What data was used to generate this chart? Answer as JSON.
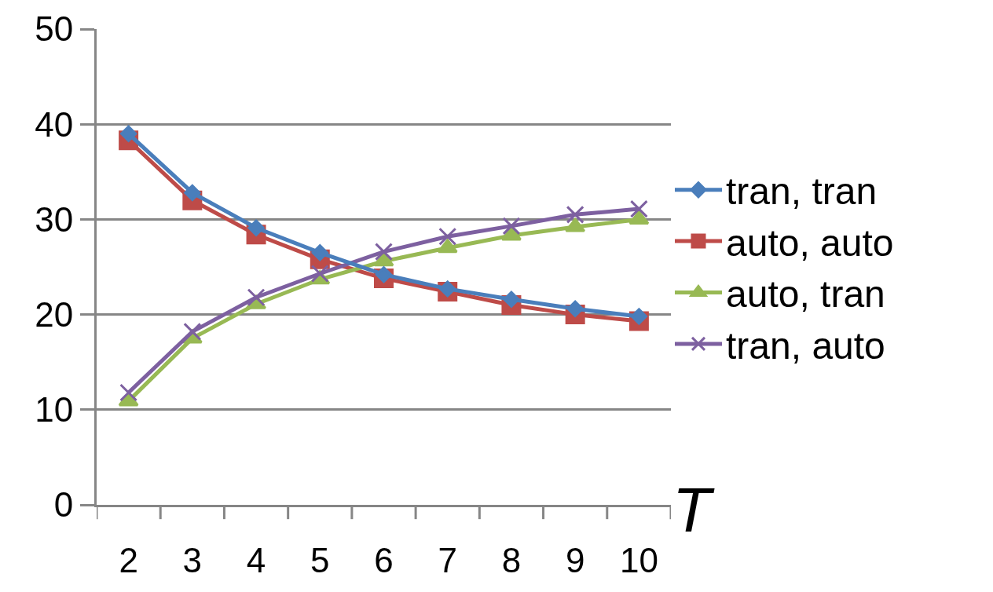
{
  "chart_data": {
    "type": "line",
    "xlabel": "T",
    "categories": [
      "2",
      "3",
      "4",
      "5",
      "6",
      "7",
      "8",
      "9",
      "10"
    ],
    "series": [
      {
        "name": "tran, tran",
        "color": "#4a7ebb",
        "marker": "diamond",
        "values": [
          39.0,
          32.8,
          29.1,
          26.5,
          24.2,
          22.7,
          21.6,
          20.6,
          19.8
        ]
      },
      {
        "name": "auto, auto",
        "color": "#be4b48",
        "marker": "square",
        "values": [
          38.3,
          32.0,
          28.4,
          25.8,
          23.8,
          22.4,
          21.0,
          20.0,
          19.3
        ]
      },
      {
        "name": "auto, tran",
        "color": "#98b954",
        "marker": "triangle",
        "values": [
          10.9,
          17.5,
          21.1,
          23.7,
          25.6,
          27.0,
          28.3,
          29.2,
          30.0
        ]
      },
      {
        "name": "tran, auto",
        "color": "#7d60a0",
        "marker": "cross",
        "values": [
          11.8,
          18.2,
          21.8,
          24.3,
          26.6,
          28.2,
          29.3,
          30.5,
          31.1
        ]
      }
    ],
    "ylim": [
      0,
      50
    ],
    "yticks": [
      0,
      10,
      20,
      30,
      40,
      50
    ],
    "grid": "y",
    "legend": "right",
    "line_style": "solid"
  }
}
